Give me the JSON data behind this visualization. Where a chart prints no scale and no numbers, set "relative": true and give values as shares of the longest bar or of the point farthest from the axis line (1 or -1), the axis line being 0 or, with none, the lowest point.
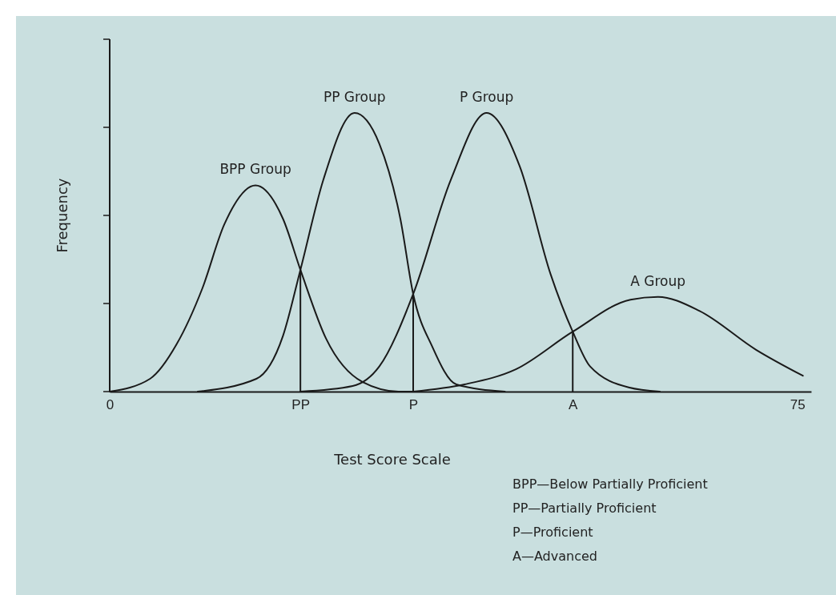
{
  "chart_data": {
    "type": "line",
    "relative": true,
    "xlabel": "Test Score Scale",
    "ylabel": "Frequency",
    "xlim": [
      0,
      76.5
    ],
    "xticks": [
      0,
      {
        "value": 20.8,
        "label": "PP"
      },
      {
        "value": 33.1,
        "label": "P"
      },
      {
        "value": 50.5,
        "label": "A"
      },
      75
    ],
    "series": [
      {
        "name": "BPP Group",
        "color": "#1a1a1a",
        "x": [
          0,
          4.4,
          7.3,
          10.1,
          12.5,
          15.9,
          18.9,
          20.8,
          23.6,
          27.6,
          31.5,
          33.5
        ],
        "values": [
          0,
          0.046,
          0.17,
          0.37,
          0.6,
          0.74,
          0.62,
          0.437,
          0.19,
          0.034,
          0,
          0
        ]
      },
      {
        "name": "PP Group",
        "color": "#1a1a1a",
        "x": [
          9.6,
          16,
          18.9,
          20.8,
          23.3,
          26.7,
          29.4,
          31.7,
          33.1,
          35.2,
          37.8,
          43.1
        ],
        "values": [
          0,
          0.046,
          0.2,
          0.437,
          0.76,
          1,
          0.89,
          0.62,
          0.35,
          0.16,
          0.026,
          0
        ]
      },
      {
        "name": "P Group",
        "color": "#1a1a1a",
        "x": [
          20.8,
          26.5,
          29.4,
          33.1,
          37.2,
          41.1,
          44.7,
          48.1,
          50.5,
          52.4,
          56.6,
          60
        ],
        "values": [
          0,
          0.02,
          0.09,
          0.35,
          0.76,
          1,
          0.81,
          0.42,
          0.215,
          0.09,
          0.015,
          0
        ]
      },
      {
        "name": "A Group",
        "color": "#1a1a1a",
        "x": [
          33.1,
          38.7,
          44.3,
          50.5,
          56.8,
          59.8,
          64.3,
          70.5,
          75.6
        ],
        "values": [
          0,
          0.026,
          0.08,
          0.215,
          0.33,
          0.34,
          0.29,
          0.15,
          0.057
        ]
      },
      {
        "color": "#1a1a1a",
        "x": [
          20.8,
          20.8
        ],
        "values": [
          0,
          0.437
        ]
      },
      {
        "color": "#1a1a1a",
        "x": [
          33.1,
          33.1
        ],
        "values": [
          0,
          0.35
        ]
      },
      {
        "color": "#1a1a1a",
        "x": [
          50.5,
          50.5
        ],
        "values": [
          0,
          0.215
        ]
      }
    ],
    "annotations": [
      "BPP—Below Partially Proficient",
      "PP—Partially Proficient",
      "P—Proficient",
      "A—Advanced"
    ]
  }
}
